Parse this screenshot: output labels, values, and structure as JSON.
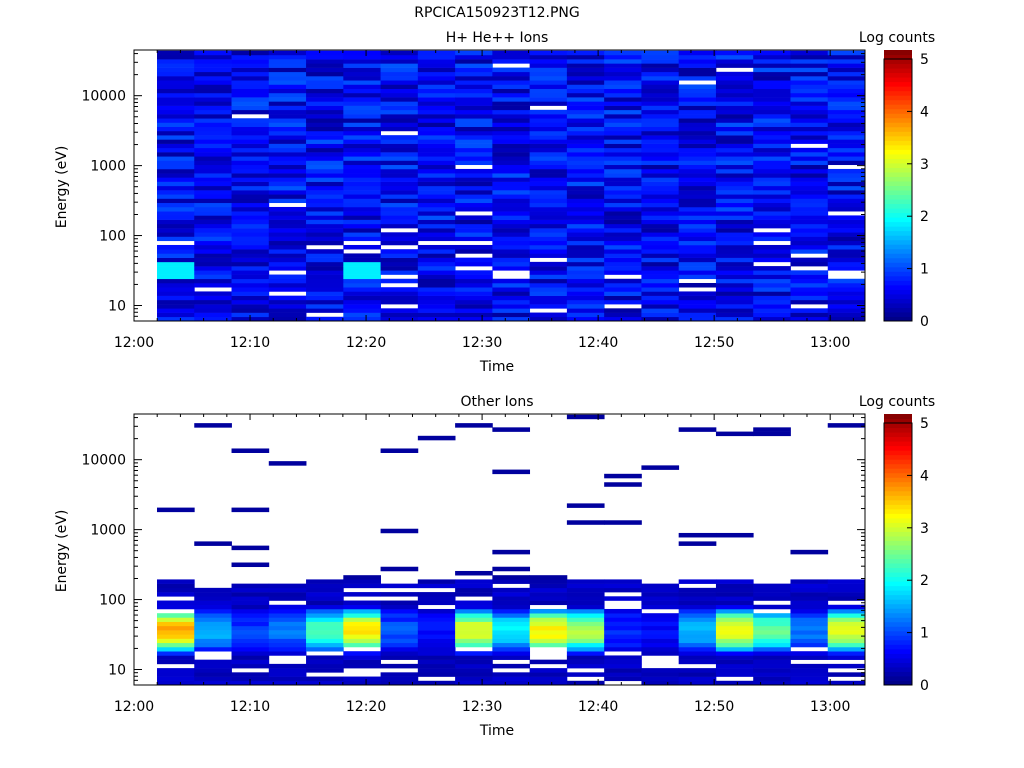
{
  "figure_title": "RPCICA150923T12.PNG",
  "chart_data": [
    {
      "type": "heatmap",
      "title": "H+ He++ Ions",
      "xlabel": "Time",
      "ylabel": "Energy (eV)",
      "y_scale": "log",
      "x_ticks": [
        "12:00",
        "12:10",
        "12:20",
        "12:30",
        "12:40",
        "12:50",
        "13:00"
      ],
      "y_ticks": [
        "10",
        "100",
        "1000",
        "10000"
      ],
      "x_range": [
        "12:00",
        "13:03"
      ],
      "y_range": [
        6,
        45000
      ],
      "colorbar": {
        "label": "Log counts",
        "range": [
          0,
          5
        ],
        "ticks": [
          "0",
          "1",
          "2",
          "3",
          "4",
          "5"
        ]
      },
      "time_bins": 19,
      "energy_bins": 64,
      "dominant_level": 0.6,
      "column_notes": "Nearly uniform dark blue (log counts ~0.3-1) at all energies, higher near 30-40 eV in the first and sixth columns (~1.5-2); white gaps (no data) scattered below 100 eV."
    },
    {
      "type": "heatmap",
      "title": "Other Ions",
      "xlabel": "Time",
      "ylabel": "Energy (eV)",
      "y_scale": "log",
      "x_ticks": [
        "12:00",
        "12:10",
        "12:20",
        "12:30",
        "12:40",
        "12:50",
        "13:00"
      ],
      "y_ticks": [
        "10",
        "100",
        "1000",
        "10000"
      ],
      "x_range": [
        "12:00",
        "13:03"
      ],
      "y_range": [
        6,
        45000
      ],
      "colorbar": {
        "label": "Log counts",
        "range": [
          0,
          5
        ],
        "ticks": [
          "0",
          "1",
          "2",
          "3",
          "4",
          "5"
        ]
      },
      "time_bins": 19,
      "energy_bins": 64,
      "peak_energy_range_eV": [
        25,
        50
      ],
      "peak_level_by_column": [
        3.6,
        1.5,
        0.9,
        1.2,
        2.3,
        3.3,
        1.0,
        0.7,
        3.0,
        1.8,
        3.2,
        2.8,
        0.8,
        0.6,
        1.6,
        3.2,
        2.4,
        1.2,
        3.0
      ],
      "column_notes": "Filled spectrum from ~6 to ~200 eV with a peak at 25-50 eV; only sparse single dark-blue bins above 200 eV."
    }
  ]
}
